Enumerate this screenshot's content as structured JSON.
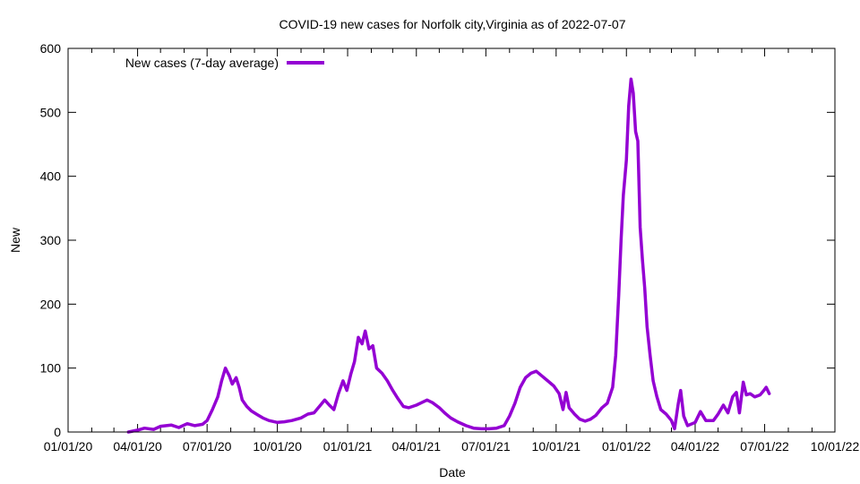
{
  "chart_data": {
    "type": "line",
    "title": "COVID-19 new cases for Norfolk city,Virginia as of 2022-07-07",
    "xlabel": "Date",
    "ylabel": "New",
    "x_range": [
      "2020-01-01",
      "2022-10-01"
    ],
    "ylim": [
      0,
      600
    ],
    "x_ticks": [
      "01/01/20",
      "04/01/20",
      "07/01/20",
      "10/01/20",
      "01/01/21",
      "04/01/21",
      "07/01/21",
      "10/01/21",
      "01/01/22",
      "04/01/22",
      "07/01/22",
      "10/01/22"
    ],
    "y_ticks": [
      "0",
      "100",
      "200",
      "300",
      "400",
      "500",
      "600"
    ],
    "grid": false,
    "legend_position": "top-left",
    "series": [
      {
        "name": "New cases (7-day average)",
        "color": "#9400d3",
        "points": [
          [
            "2020-03-20",
            0
          ],
          [
            "2020-04-01",
            3
          ],
          [
            "2020-04-10",
            6
          ],
          [
            "2020-04-22",
            4
          ],
          [
            "2020-05-01",
            9
          ],
          [
            "2020-05-15",
            11
          ],
          [
            "2020-05-25",
            7
          ],
          [
            "2020-06-05",
            13
          ],
          [
            "2020-06-15",
            10
          ],
          [
            "2020-06-25",
            12
          ],
          [
            "2020-07-01",
            18
          ],
          [
            "2020-07-08",
            35
          ],
          [
            "2020-07-15",
            55
          ],
          [
            "2020-07-20",
            80
          ],
          [
            "2020-07-25",
            100
          ],
          [
            "2020-07-30",
            88
          ],
          [
            "2020-08-03",
            75
          ],
          [
            "2020-08-08",
            85
          ],
          [
            "2020-08-12",
            70
          ],
          [
            "2020-08-16",
            50
          ],
          [
            "2020-08-22",
            40
          ],
          [
            "2020-08-28",
            33
          ],
          [
            "2020-09-05",
            27
          ],
          [
            "2020-09-12",
            22
          ],
          [
            "2020-09-20",
            18
          ],
          [
            "2020-10-01",
            15
          ],
          [
            "2020-10-10",
            16
          ],
          [
            "2020-10-20",
            18
          ],
          [
            "2020-11-01",
            22
          ],
          [
            "2020-11-10",
            28
          ],
          [
            "2020-11-18",
            30
          ],
          [
            "2020-11-25",
            40
          ],
          [
            "2020-12-02",
            50
          ],
          [
            "2020-12-08",
            42
          ],
          [
            "2020-12-14",
            35
          ],
          [
            "2020-12-20",
            60
          ],
          [
            "2020-12-26",
            80
          ],
          [
            "2020-12-31",
            65
          ],
          [
            "2021-01-05",
            90
          ],
          [
            "2021-01-10",
            110
          ],
          [
            "2021-01-15",
            148
          ],
          [
            "2021-01-20",
            138
          ],
          [
            "2021-01-24",
            158
          ],
          [
            "2021-01-29",
            130
          ],
          [
            "2021-02-03",
            135
          ],
          [
            "2021-02-08",
            100
          ],
          [
            "2021-02-15",
            92
          ],
          [
            "2021-02-22",
            80
          ],
          [
            "2021-03-01",
            65
          ],
          [
            "2021-03-08",
            52
          ],
          [
            "2021-03-15",
            40
          ],
          [
            "2021-03-22",
            38
          ],
          [
            "2021-04-01",
            42
          ],
          [
            "2021-04-08",
            46
          ],
          [
            "2021-04-15",
            50
          ],
          [
            "2021-04-22",
            46
          ],
          [
            "2021-05-01",
            38
          ],
          [
            "2021-05-08",
            30
          ],
          [
            "2021-05-16",
            22
          ],
          [
            "2021-05-25",
            16
          ],
          [
            "2021-06-05",
            10
          ],
          [
            "2021-06-15",
            6
          ],
          [
            "2021-06-25",
            5
          ],
          [
            "2021-07-05",
            5
          ],
          [
            "2021-07-15",
            6
          ],
          [
            "2021-07-25",
            10
          ],
          [
            "2021-08-01",
            25
          ],
          [
            "2021-08-08",
            45
          ],
          [
            "2021-08-15",
            70
          ],
          [
            "2021-08-22",
            85
          ],
          [
            "2021-08-29",
            92
          ],
          [
            "2021-09-05",
            95
          ],
          [
            "2021-09-12",
            88
          ],
          [
            "2021-09-20",
            80
          ],
          [
            "2021-09-28",
            72
          ],
          [
            "2021-10-05",
            60
          ],
          [
            "2021-10-10",
            35
          ],
          [
            "2021-10-14",
            62
          ],
          [
            "2021-10-18",
            38
          ],
          [
            "2021-10-25",
            28
          ],
          [
            "2021-11-01",
            20
          ],
          [
            "2021-11-08",
            17
          ],
          [
            "2021-11-15",
            20
          ],
          [
            "2021-11-22",
            26
          ],
          [
            "2021-11-30",
            38
          ],
          [
            "2021-12-07",
            45
          ],
          [
            "2021-12-14",
            70
          ],
          [
            "2021-12-18",
            120
          ],
          [
            "2021-12-22",
            215
          ],
          [
            "2021-12-25",
            300
          ],
          [
            "2021-12-28",
            370
          ],
          [
            "2022-01-01",
            425
          ],
          [
            "2022-01-04",
            510
          ],
          [
            "2022-01-07",
            552
          ],
          [
            "2022-01-10",
            530
          ],
          [
            "2022-01-13",
            470
          ],
          [
            "2022-01-16",
            455
          ],
          [
            "2022-01-19",
            320
          ],
          [
            "2022-01-22",
            270
          ],
          [
            "2022-01-25",
            225
          ],
          [
            "2022-01-28",
            165
          ],
          [
            "2022-02-01",
            120
          ],
          [
            "2022-02-05",
            80
          ],
          [
            "2022-02-10",
            55
          ],
          [
            "2022-02-15",
            35
          ],
          [
            "2022-02-22",
            28
          ],
          [
            "2022-03-01",
            18
          ],
          [
            "2022-03-05",
            5
          ],
          [
            "2022-03-10",
            45
          ],
          [
            "2022-03-13",
            65
          ],
          [
            "2022-03-17",
            25
          ],
          [
            "2022-03-22",
            10
          ],
          [
            "2022-04-01",
            15
          ],
          [
            "2022-04-08",
            32
          ],
          [
            "2022-04-15",
            18
          ],
          [
            "2022-04-25",
            18
          ],
          [
            "2022-05-01",
            28
          ],
          [
            "2022-05-08",
            42
          ],
          [
            "2022-05-14",
            30
          ],
          [
            "2022-05-20",
            55
          ],
          [
            "2022-05-25",
            62
          ],
          [
            "2022-05-29",
            30
          ],
          [
            "2022-06-03",
            78
          ],
          [
            "2022-06-07",
            58
          ],
          [
            "2022-06-12",
            60
          ],
          [
            "2022-06-18",
            55
          ],
          [
            "2022-06-25",
            58
          ],
          [
            "2022-06-30",
            65
          ],
          [
            "2022-07-03",
            70
          ],
          [
            "2022-07-07",
            60
          ]
        ]
      }
    ]
  }
}
